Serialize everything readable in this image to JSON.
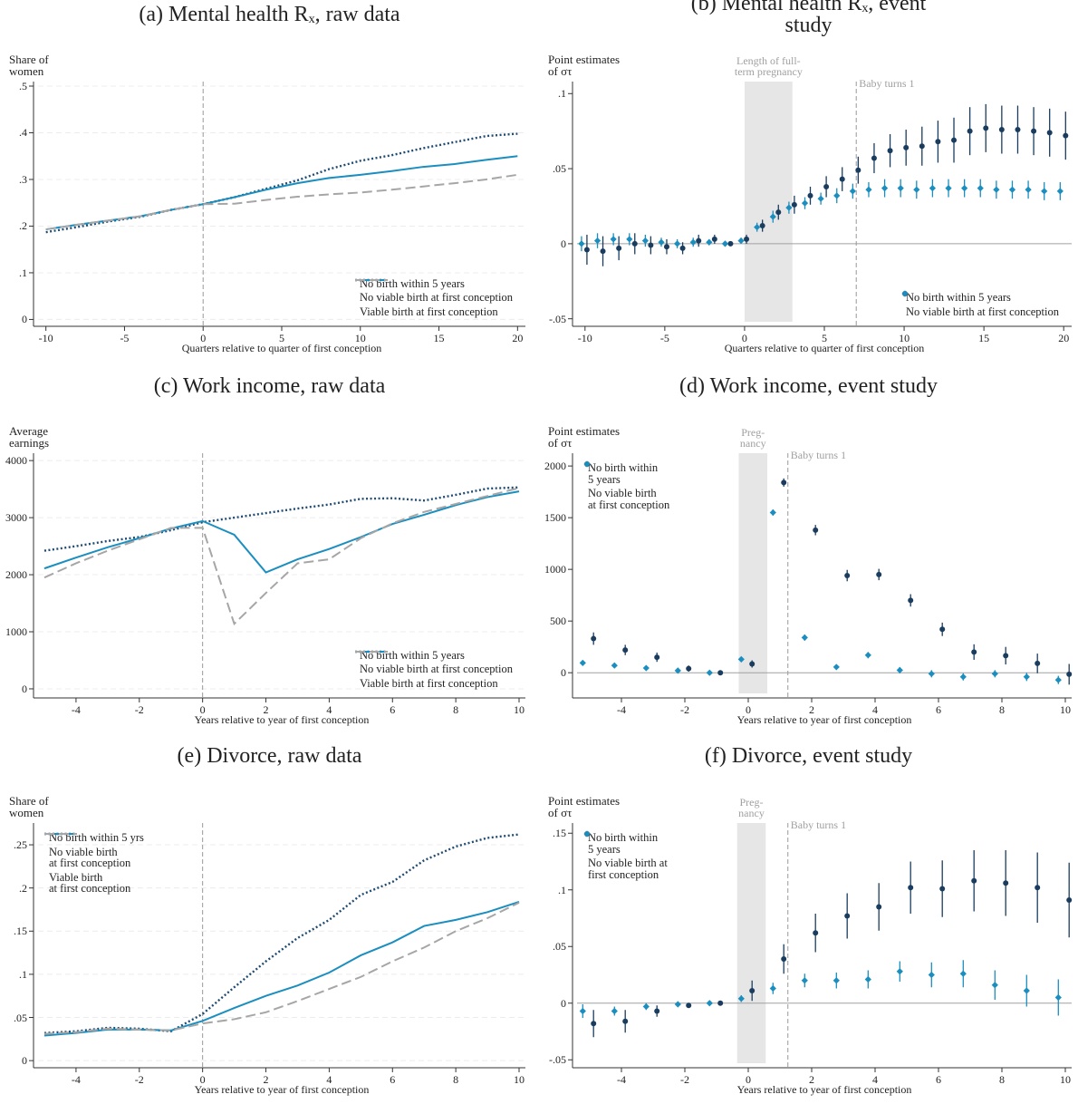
{
  "chart_data": [
    {
      "type": "line",
      "title": "(a) Mental health Rₓ, raw data",
      "ylabel": "Share of\nwomen",
      "xlabel": "Quarters relative to quarter of first conception",
      "x": [
        -10,
        -8,
        -6,
        -4,
        -2,
        0,
        2,
        4,
        6,
        8,
        10,
        12,
        14,
        16,
        18,
        20
      ],
      "xlim": [
        -10.5,
        20.5
      ],
      "xticks": [
        -10,
        -5,
        0,
        5,
        10,
        15,
        20
      ],
      "ylim": [
        -0.005,
        0.5
      ],
      "yticks": [
        0,
        {
          "value": 0.1,
          "label": ".1"
        },
        {
          "value": 0.2,
          "label": ".2"
        },
        {
          "value": 0.3,
          "label": ".3"
        },
        {
          "value": 0.4,
          "label": ".4"
        },
        {
          "value": 0.5,
          "label": ".5"
        }
      ],
      "grid": true,
      "legend": "lower right",
      "vlines": [
        {
          "x": 0
        }
      ],
      "series": [
        {
          "name": "No birth within 5 years",
          "color": "#1e4b73",
          "style": "dot",
          "values": [
            0.187,
            0.198,
            0.21,
            0.22,
            0.235,
            0.247,
            0.262,
            0.28,
            0.298,
            0.322,
            0.34,
            0.352,
            0.367,
            0.38,
            0.393,
            0.398
          ]
        },
        {
          "name": "No viable birth at first conception",
          "color": "#1b8ec0",
          "style": "solid",
          "values": [
            0.193,
            0.203,
            0.212,
            0.221,
            0.235,
            0.247,
            0.262,
            0.278,
            0.292,
            0.303,
            0.31,
            0.318,
            0.327,
            0.333,
            0.342,
            0.35
          ]
        },
        {
          "name": "Viable birth at first conception",
          "color": "#a6a6a6",
          "style": "dash",
          "values": [
            0.193,
            0.203,
            0.212,
            0.221,
            0.235,
            0.247,
            0.248,
            0.256,
            0.263,
            0.268,
            0.272,
            0.278,
            0.285,
            0.292,
            0.3,
            0.31
          ]
        }
      ]
    },
    {
      "type": "errorbar",
      "title": "(b) Mental health Rₓ, event study",
      "ylabel": "Point estimates\nof στ",
      "xlabel": "Quarters relative to quarter of first conception",
      "x": [
        -10,
        -9,
        -8,
        -7,
        -6,
        -5,
        -4,
        -3,
        -2,
        -1,
        0,
        1,
        2,
        3,
        4,
        5,
        6,
        7,
        8,
        9,
        10,
        11,
        12,
        13,
        14,
        15,
        16,
        17,
        18,
        19,
        20
      ],
      "xlim": [
        -10.5,
        20.5
      ],
      "xticks": [
        -10,
        -5,
        0,
        5,
        10,
        15,
        20
      ],
      "ylim": [
        -0.052,
        0.105
      ],
      "yticks": [
        {
          "value": -0.05,
          "label": "-.05"
        },
        0,
        {
          "value": 0.05,
          "label": ".05"
        },
        {
          "value": 0.1,
          "label": ".1"
        }
      ],
      "grid": false,
      "hline": 0,
      "legend": "lower right",
      "shade": {
        "from": 0,
        "to": 3,
        "label": "Length of full-\nterm pregnancy"
      },
      "vlines": [
        {
          "x": 7,
          "label": "Baby turns 1"
        }
      ],
      "series": [
        {
          "name": "No birth within 5 years",
          "color": "#1a3d5f",
          "marker": "circle",
          "values": [
            -0.004,
            -0.005,
            -0.003,
            0,
            -0.001,
            -0.002,
            -0.003,
            0.002,
            0.003,
            0,
            0.003,
            0.012,
            0.021,
            0.026,
            0.032,
            0.038,
            0.043,
            0.049,
            0.057,
            0.062,
            0.064,
            0.065,
            0.068,
            0.069,
            0.075,
            0.077,
            0.076,
            0.076,
            0.075,
            0.074,
            0.072
          ],
          "errors": [
            0.01,
            0.01,
            0.008,
            0.007,
            0.006,
            0.005,
            0.004,
            0.004,
            0.003,
            0.001,
            0.003,
            0.004,
            0.005,
            0.006,
            0.006,
            0.007,
            0.008,
            0.009,
            0.01,
            0.011,
            0.012,
            0.013,
            0.014,
            0.015,
            0.016,
            0.016,
            0.016,
            0.016,
            0.016,
            0.016,
            0.016
          ]
        },
        {
          "name": "No viable birth at first conception",
          "color": "#1b8ec0",
          "marker": "diamond",
          "values": [
            0,
            0.002,
            0.003,
            0.003,
            0.002,
            0.001,
            0,
            0.001,
            0.001,
            0,
            0.002,
            0.011,
            0.018,
            0.024,
            0.027,
            0.03,
            0.032,
            0.035,
            0.036,
            0.037,
            0.037,
            0.036,
            0.037,
            0.037,
            0.037,
            0.037,
            0.036,
            0.036,
            0.036,
            0.035,
            0.035
          ],
          "errors": [
            0.005,
            0.005,
            0.004,
            0.004,
            0.004,
            0.003,
            0.003,
            0.003,
            0.002,
            0.001,
            0.002,
            0.003,
            0.004,
            0.004,
            0.004,
            0.004,
            0.005,
            0.005,
            0.005,
            0.006,
            0.006,
            0.006,
            0.006,
            0.006,
            0.006,
            0.006,
            0.006,
            0.006,
            0.006,
            0.006,
            0.006
          ]
        }
      ]
    },
    {
      "type": "line",
      "title": "(c) Work income, raw data",
      "ylabel": "Average\nearnings",
      "xlabel": "Years relative to year of first conception",
      "x": [
        -5,
        -4,
        -3,
        -2,
        -1,
        0,
        1,
        2,
        3,
        4,
        5,
        6,
        7,
        8,
        9,
        10
      ],
      "xlim": [
        -5.2,
        10.2
      ],
      "xticks": [
        -4,
        -2,
        0,
        2,
        4,
        6,
        8,
        10
      ],
      "ylim": [
        -80,
        4050
      ],
      "yticks": [
        0,
        1000,
        2000,
        3000,
        4000
      ],
      "grid": true,
      "legend": "lower right",
      "vlines": [
        {
          "x": 0
        }
      ],
      "series": [
        {
          "name": "No birth within 5 years",
          "color": "#1e4b73",
          "style": "dot",
          "values": [
            2420,
            2500,
            2590,
            2660,
            2780,
            2920,
            3000,
            3080,
            3160,
            3230,
            3330,
            3340,
            3300,
            3400,
            3510,
            3530
          ]
        },
        {
          "name": "No viable birth at first conception",
          "color": "#1b8ec0",
          "style": "solid",
          "values": [
            2110,
            2300,
            2480,
            2640,
            2810,
            2940,
            2700,
            2040,
            2270,
            2450,
            2660,
            2890,
            3050,
            3220,
            3360,
            3460
          ]
        },
        {
          "name": "Viable birth at first conception",
          "color": "#a6a6a6",
          "style": "dash",
          "values": [
            1950,
            2200,
            2420,
            2620,
            2820,
            2820,
            1140,
            1680,
            2200,
            2270,
            2640,
            2900,
            3100,
            3240,
            3380,
            3520
          ]
        }
      ]
    },
    {
      "type": "errorbar",
      "title": "(d) Work income, event study",
      "ylabel": "Point estimates\nof στ",
      "xlabel": "Years relative to year of first conception",
      "x": [
        -5,
        -4,
        -3,
        -2,
        -1,
        0,
        1,
        2,
        3,
        4,
        5,
        6,
        7,
        8,
        9,
        10
      ],
      "xlim": [
        -5.4,
        10.2
      ],
      "xticks": [
        -4,
        -2,
        0,
        2,
        4,
        6,
        8,
        10
      ],
      "ylim": [
        -200,
        2080
      ],
      "yticks": [
        0,
        500,
        1000,
        1500,
        2000
      ],
      "grid": false,
      "hline": 0,
      "legend": "upper left",
      "shade": {
        "from": -0.3,
        "to": 0.6,
        "label": "Preg-\nnancy"
      },
      "vlines": [
        {
          "x": 1.25,
          "label": "Baby turns 1"
        }
      ],
      "series": [
        {
          "name": "No birth within\n5 years",
          "color": "#1a3d5f",
          "marker": "circle",
          "values": [
            330,
            220,
            150,
            40,
            0,
            85,
            1840,
            1380,
            940,
            950,
            700,
            420,
            200,
            165,
            90,
            -15
          ],
          "errors": [
            60,
            50,
            45,
            30,
            15,
            35,
            40,
            50,
            55,
            55,
            60,
            65,
            75,
            85,
            95,
            100
          ]
        },
        {
          "name": "No viable birth\nat first conception",
          "color": "#1b8ec0",
          "marker": "diamond",
          "values": [
            95,
            70,
            45,
            20,
            0,
            130,
            1550,
            340,
            55,
            170,
            25,
            -10,
            -40,
            -10,
            -40,
            -70
          ],
          "errors": [
            20,
            20,
            20,
            15,
            10,
            20,
            30,
            30,
            25,
            30,
            30,
            35,
            35,
            35,
            40,
            40
          ]
        }
      ]
    },
    {
      "type": "line",
      "title": "(e) Divorce, raw data",
      "ylabel": "Share of\nwomen",
      "xlabel": "Years relative to year of first conception",
      "x": [
        -5,
        -4,
        -3,
        -2,
        -1,
        0,
        1,
        2,
        3,
        4,
        5,
        6,
        7,
        8,
        9,
        10
      ],
      "xlim": [
        -5.2,
        10.2
      ],
      "xticks": [
        -4,
        -2,
        0,
        2,
        4,
        6,
        8,
        10
      ],
      "ylim": [
        -0.003,
        0.27
      ],
      "yticks": [
        0,
        {
          "value": 0.05,
          "label": ".05"
        },
        {
          "value": 0.1,
          "label": ".1"
        },
        {
          "value": 0.15,
          "label": ".15"
        },
        {
          "value": 0.2,
          "label": ".2"
        },
        {
          "value": 0.25,
          "label": ".25"
        }
      ],
      "grid": true,
      "legend": "upper left",
      "vlines": [
        {
          "x": 0
        }
      ],
      "series": [
        {
          "name": "No birth within 5 yrs",
          "color": "#1e4b73",
          "style": "dot",
          "values": [
            0.032,
            0.034,
            0.038,
            0.037,
            0.034,
            0.054,
            0.085,
            0.115,
            0.142,
            0.163,
            0.192,
            0.207,
            0.232,
            0.248,
            0.258,
            0.262
          ]
        },
        {
          "name": "No viable birth\nat first conception",
          "color": "#1b8ec0",
          "style": "solid",
          "values": [
            0.029,
            0.032,
            0.036,
            0.036,
            0.035,
            0.046,
            0.061,
            0.075,
            0.087,
            0.102,
            0.122,
            0.137,
            0.156,
            0.163,
            0.172,
            0.184
          ]
        },
        {
          "name": "Viable birth\nat first conception",
          "color": "#a6a6a6",
          "style": "dash",
          "values": [
            0.031,
            0.033,
            0.037,
            0.036,
            0.035,
            0.043,
            0.048,
            0.056,
            0.069,
            0.083,
            0.097,
            0.115,
            0.131,
            0.15,
            0.165,
            0.183
          ]
        }
      ]
    },
    {
      "type": "errorbar",
      "title": "(f) Divorce, event study",
      "ylabel": "Point estimates\nof στ",
      "xlabel": "Years relative to year of first conception",
      "x": [
        -5,
        -4,
        -3,
        -2,
        -1,
        0,
        1,
        2,
        3,
        4,
        5,
        6,
        7,
        8,
        9,
        10
      ],
      "xlim": [
        -5.4,
        10.2
      ],
      "xticks": [
        -4,
        -2,
        0,
        2,
        4,
        6,
        8,
        10
      ],
      "ylim": [
        -0.053,
        0.155
      ],
      "yticks": [
        {
          "value": -0.05,
          "label": "-.05"
        },
        0,
        {
          "value": 0.05,
          "label": ".05"
        },
        {
          "value": 0.1,
          "label": ".1"
        },
        {
          "value": 0.15,
          "label": ".15"
        }
      ],
      "grid": false,
      "hline": 0,
      "legend": "upper left",
      "shade": {
        "from": -0.35,
        "to": 0.55,
        "label": "Preg-\nnancy"
      },
      "vlines": [
        {
          "x": 1.25,
          "label": "Baby turns 1"
        }
      ],
      "series": [
        {
          "name": "No birth within\n5 years",
          "color": "#1a3d5f",
          "marker": "circle",
          "values": [
            -0.018,
            -0.016,
            -0.007,
            -0.002,
            0,
            0.011,
            0.039,
            0.062,
            0.077,
            0.085,
            0.102,
            0.101,
            0.108,
            0.106,
            0.102,
            0.091
          ],
          "errors": [
            0.012,
            0.01,
            0.005,
            0.002,
            0.001,
            0.009,
            0.013,
            0.017,
            0.02,
            0.021,
            0.023,
            0.025,
            0.027,
            0.029,
            0.031,
            0.033
          ]
        },
        {
          "name": "No viable birth at\nfirst conception",
          "color": "#1b8ec0",
          "marker": "diamond",
          "values": [
            -0.007,
            -0.007,
            -0.003,
            -0.001,
            0,
            0.004,
            0.013,
            0.02,
            0.02,
            0.021,
            0.028,
            0.025,
            0.026,
            0.016,
            0.011,
            0.005
          ],
          "errors": [
            0.006,
            0.004,
            0.003,
            0.002,
            0.001,
            0.003,
            0.005,
            0.006,
            0.007,
            0.008,
            0.009,
            0.011,
            0.012,
            0.013,
            0.014,
            0.016
          ]
        }
      ]
    }
  ]
}
